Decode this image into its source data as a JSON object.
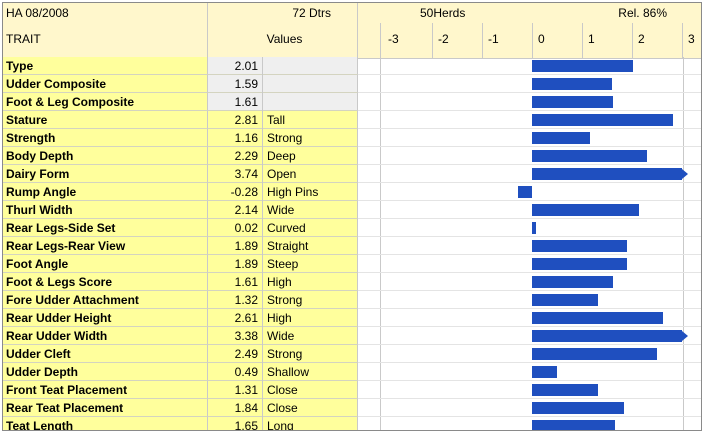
{
  "header": {
    "evaluation": "HA 08/2008",
    "daughters": "72 Dtrs",
    "herds": "50Herds",
    "reliability": "Rel. 86%",
    "trait_col": "TRAIT",
    "values_col": "Values"
  },
  "scale": {
    "ticks": [
      "-3",
      "-2",
      "-1",
      "0",
      "1",
      "2",
      "3"
    ],
    "min": -3,
    "max": 3,
    "overflow_arrow_at": 3
  },
  "bar_color": "#1f4fbf",
  "rows": [
    {
      "trait": "Type",
      "value": "2.01",
      "desc": "",
      "num": 2.01,
      "style": "gray"
    },
    {
      "trait": "Udder Composite",
      "value": "1.59",
      "desc": "",
      "num": 1.59,
      "style": "gray"
    },
    {
      "trait": "Foot & Leg Composite",
      "value": "1.61",
      "desc": "",
      "num": 1.61,
      "style": "gray"
    },
    {
      "trait": "Stature",
      "value": "2.81",
      "desc": "Tall",
      "num": 2.81,
      "style": "yellow"
    },
    {
      "trait": "Strength",
      "value": "1.16",
      "desc": "Strong",
      "num": 1.16,
      "style": "yellow"
    },
    {
      "trait": "Body Depth",
      "value": "2.29",
      "desc": "Deep",
      "num": 2.29,
      "style": "yellow"
    },
    {
      "trait": "Dairy Form",
      "value": "3.74",
      "desc": "Open",
      "num": 3.74,
      "style": "yellow"
    },
    {
      "trait": "Rump Angle",
      "value": "-0.28",
      "desc": "High Pins",
      "num": -0.28,
      "style": "yellow"
    },
    {
      "trait": "Thurl Width",
      "value": "2.14",
      "desc": "Wide",
      "num": 2.14,
      "style": "yellow"
    },
    {
      "trait": "Rear Legs-Side Set",
      "value": "0.02",
      "desc": "Curved",
      "num": 0.02,
      "style": "yellow"
    },
    {
      "trait": "Rear Legs-Rear View",
      "value": "1.89",
      "desc": "Straight",
      "num": 1.89,
      "style": "yellow"
    },
    {
      "trait": "Foot Angle",
      "value": "1.89",
      "desc": "Steep",
      "num": 1.89,
      "style": "yellow"
    },
    {
      "trait": "Foot & Legs Score",
      "value": "1.61",
      "desc": "High",
      "num": 1.61,
      "style": "yellow"
    },
    {
      "trait": "Fore Udder Attachment",
      "value": "1.32",
      "desc": "Strong",
      "num": 1.32,
      "style": "yellow"
    },
    {
      "trait": "Rear Udder Height",
      "value": "2.61",
      "desc": "High",
      "num": 2.61,
      "style": "yellow"
    },
    {
      "trait": "Rear Udder Width",
      "value": "3.38",
      "desc": "Wide",
      "num": 3.38,
      "style": "yellow"
    },
    {
      "trait": "Udder Cleft",
      "value": "2.49",
      "desc": "Strong",
      "num": 2.49,
      "style": "yellow"
    },
    {
      "trait": "Udder Depth",
      "value": "0.49",
      "desc": "Shallow",
      "num": 0.49,
      "style": "yellow"
    },
    {
      "trait": "Front Teat Placement",
      "value": "1.31",
      "desc": "Close",
      "num": 1.31,
      "style": "yellow"
    },
    {
      "trait": "Rear Teat Placement",
      "value": "1.84",
      "desc": "Close",
      "num": 1.84,
      "style": "yellow"
    },
    {
      "trait": "Teat Length",
      "value": "1.65",
      "desc": "Long",
      "num": 1.65,
      "style": "yellow"
    }
  ]
}
